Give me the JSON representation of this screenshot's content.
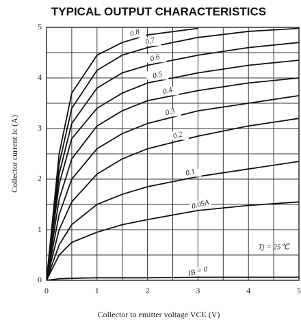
{
  "chart_data": {
    "type": "line",
    "title": "TYPICAL OUTPUT CHARACTERISTICS",
    "x_label": "Collector to emitter voltage  VCE (V)",
    "y_label": "Collector current  Ic (A)",
    "annotation": "Tj = 25℃",
    "x": [
      0,
      0.25,
      0.5,
      1,
      1.5,
      2,
      3,
      4,
      5
    ],
    "series": [
      {
        "name": "0.8",
        "color": "#111111",
        "values": [
          0,
          2.5,
          3.7,
          4.45,
          4.7,
          4.85,
          4.98,
          null,
          null
        ]
      },
      {
        "name": "0.7",
        "color": "#111111",
        "values": [
          0,
          2.3,
          3.4,
          4.15,
          4.45,
          4.6,
          4.8,
          4.92,
          4.98
        ]
      },
      {
        "name": "0.6",
        "color": "#111111",
        "values": [
          0,
          2.1,
          3.1,
          3.8,
          4.1,
          4.25,
          4.45,
          4.6,
          4.7
        ]
      },
      {
        "name": "0.5",
        "color": "#111111",
        "values": [
          0,
          1.9,
          2.8,
          3.4,
          3.7,
          3.9,
          4.1,
          4.25,
          4.35
        ]
      },
      {
        "name": "0.4",
        "color": "#111111",
        "values": [
          0,
          1.6,
          2.4,
          3.05,
          3.35,
          3.55,
          3.75,
          3.9,
          4.0
        ]
      },
      {
        "name": "0.3",
        "color": "#111111",
        "values": [
          0,
          1.3,
          2.0,
          2.6,
          2.9,
          3.1,
          3.35,
          3.5,
          3.65
        ]
      },
      {
        "name": "0.2",
        "color": "#111111",
        "values": [
          0,
          1.0,
          1.55,
          2.1,
          2.4,
          2.6,
          2.85,
          3.05,
          3.2
        ]
      },
      {
        "name": "0.1",
        "color": "#111111",
        "values": [
          0,
          0.7,
          1.1,
          1.5,
          1.7,
          1.85,
          2.05,
          2.2,
          2.35
        ]
      },
      {
        "name": "0.05A",
        "color": "#111111",
        "values": [
          0,
          0.5,
          0.75,
          0.95,
          1.1,
          1.2,
          1.38,
          1.48,
          1.55
        ]
      },
      {
        "name": "IB = 0",
        "color": "#111111",
        "values": [
          0,
          0.03,
          0.04,
          0.05,
          0.05,
          0.05,
          0.06,
          0.06,
          0.06
        ]
      }
    ],
    "xlim": [
      0,
      5
    ],
    "ylim": [
      0,
      5
    ],
    "xticks": [
      0,
      1,
      2,
      3,
      4,
      5
    ],
    "yticks": [
      0,
      1,
      2,
      3,
      4,
      5
    ],
    "x_minor_grid": [
      0.5,
      1.5,
      2.5,
      3.5,
      4.5
    ],
    "y_minor_grid": [
      0.5,
      1.5,
      2.5,
      3.5,
      4.5
    ],
    "grid": true
  }
}
